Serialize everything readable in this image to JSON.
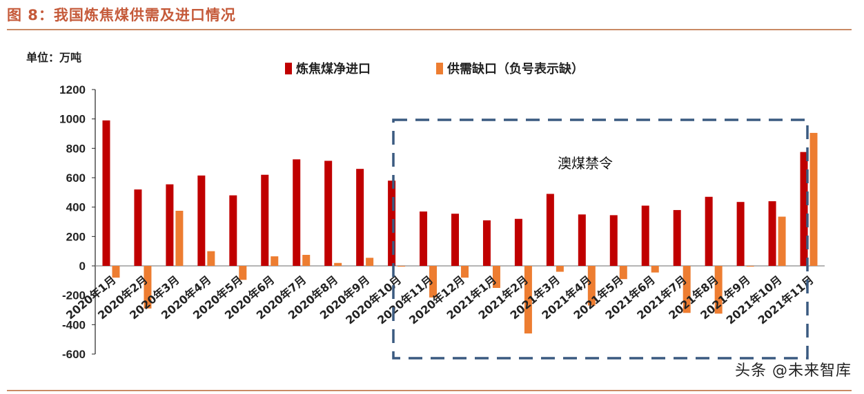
{
  "header": {
    "title": "图 8：我国炼焦煤供需及进口情况"
  },
  "unit_label": "单位：万吨",
  "watermark": "头条 @未来智库",
  "colors": {
    "title": "#c55a3a",
    "rule": "#c98a64",
    "series_import": "#c00000",
    "series_gap": "#ed7d31",
    "box": "#3a5a80"
  },
  "chart_data": {
    "type": "bar",
    "categories": [
      "2020年1月",
      "2020年2月",
      "2020年3月",
      "2020年4月",
      "2020年5月",
      "2020年6月",
      "2020年7月",
      "2020年8月",
      "2020年9月",
      "2020年10月",
      "2020年11月",
      "2020年12月",
      "2021年1月",
      "2021年2月",
      "2021年3月",
      "2021年4月",
      "2021年5月",
      "2021年6月",
      "2021年7月",
      "2021年8月",
      "2021年9月",
      "2021年10月",
      "2021年11月"
    ],
    "series": [
      {
        "name": "炼焦煤净进口",
        "color": "#c00000",
        "values": [
          990,
          520,
          555,
          615,
          480,
          620,
          725,
          715,
          660,
          580,
          370,
          355,
          310,
          320,
          490,
          350,
          345,
          410,
          380,
          470,
          435,
          440,
          775
        ]
      },
      {
        "name": "供需缺口（负号表示缺）",
        "color": "#ed7d31",
        "values": [
          -80,
          -290,
          375,
          100,
          -95,
          65,
          75,
          20,
          55,
          -5,
          -215,
          -80,
          -150,
          -460,
          -40,
          -270,
          -90,
          -45,
          -320,
          -325,
          -5,
          335,
          905
        ]
      }
    ],
    "ylim": [
      -600,
      1200
    ],
    "yticks": [
      1200,
      1000,
      800,
      600,
      400,
      200,
      0,
      -200,
      -400,
      -600
    ],
    "annotation": "澳煤禁令",
    "legend_position": "top"
  }
}
